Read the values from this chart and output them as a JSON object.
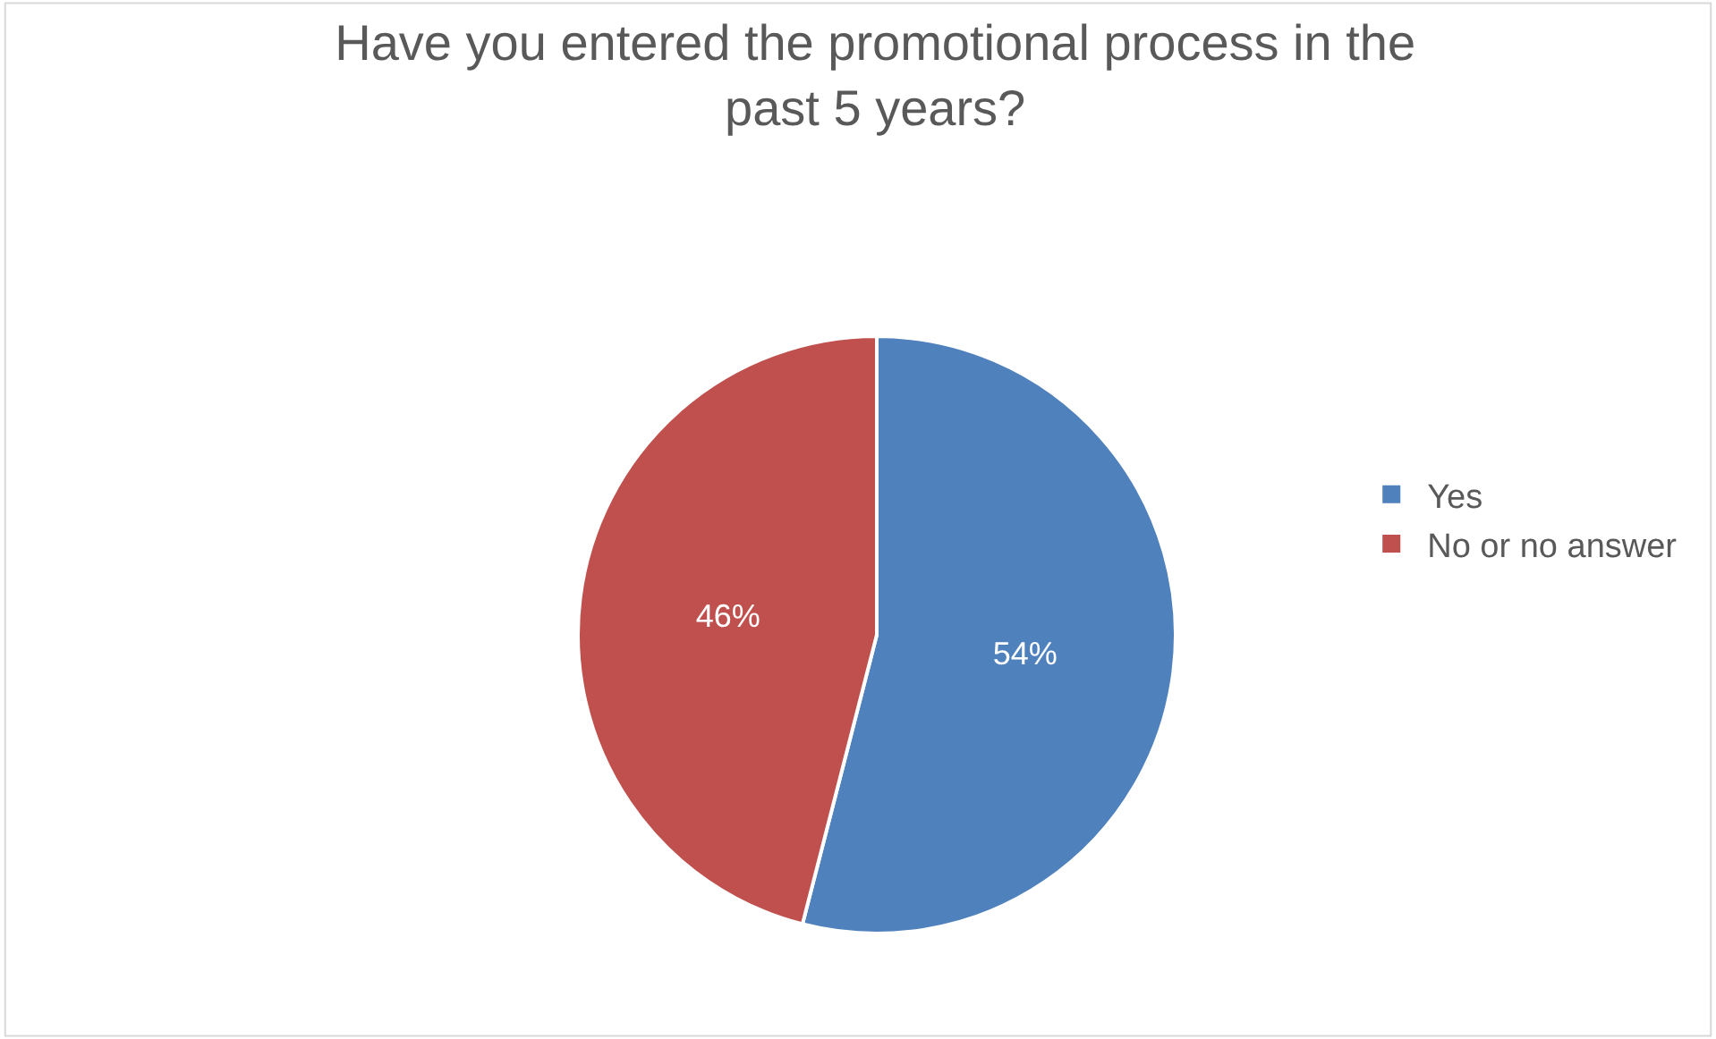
{
  "chart_data": {
    "type": "pie",
    "title": "Have you entered the promotional process in the\npast 5 years?",
    "categories": [
      "Yes",
      "No or no answer"
    ],
    "values": [
      54,
      46
    ],
    "colors": [
      "#4f81bd",
      "#c0504d"
    ],
    "value_labels": [
      "54%",
      "46%"
    ],
    "legend": "right"
  }
}
